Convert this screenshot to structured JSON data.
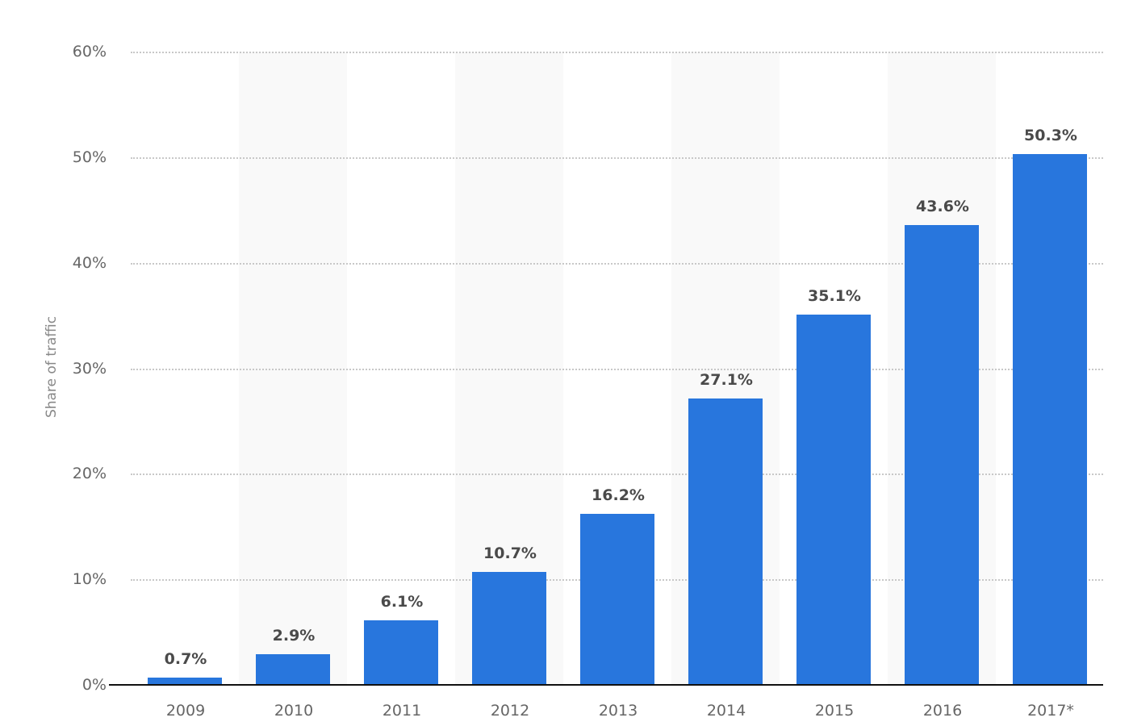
{
  "chart_data": {
    "type": "bar",
    "title": "",
    "xlabel": "",
    "ylabel": "Share of traffic",
    "ylim": [
      0,
      60
    ],
    "yticks": [
      "0%",
      "10%",
      "20%",
      "30%",
      "40%",
      "50%",
      "60%"
    ],
    "grid": true,
    "legend": null,
    "categories": [
      "2009",
      "2010",
      "2011",
      "2012",
      "2013",
      "2014",
      "2015",
      "2016",
      "2017*"
    ],
    "values": [
      0.7,
      2.9,
      6.1,
      10.7,
      16.2,
      27.1,
      35.1,
      43.6,
      50.3
    ],
    "value_labels": [
      "0.7%",
      "2.9%",
      "6.1%",
      "10.7%",
      "16.2%",
      "27.1%",
      "35.1%",
      "43.6%",
      "50.3%"
    ],
    "bar_color": "#2876dd"
  }
}
